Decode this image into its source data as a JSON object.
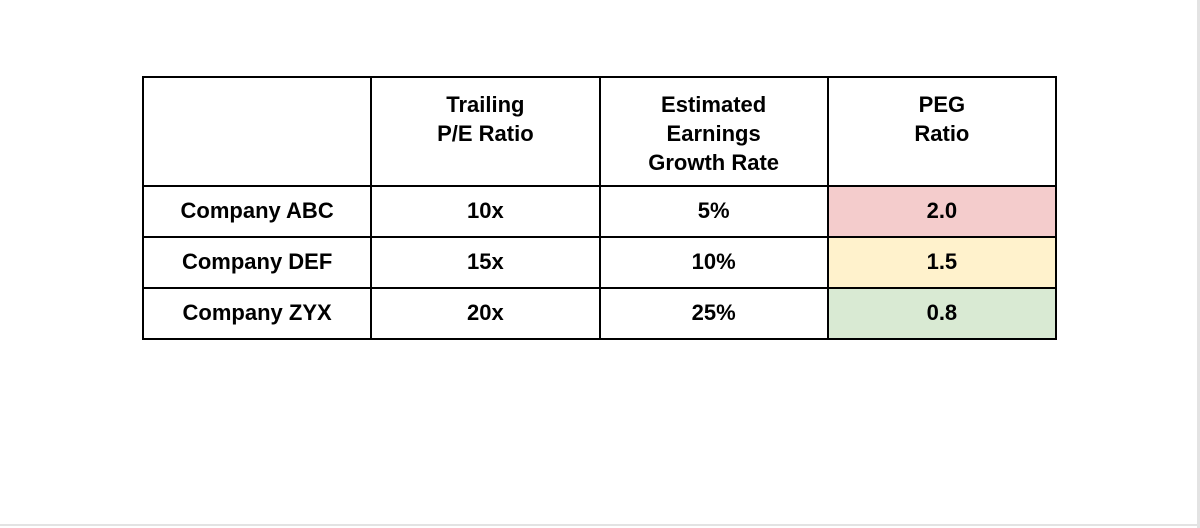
{
  "page": {
    "background": "#ffffff",
    "edge_line_color": "#e3e3e3"
  },
  "table": {
    "border_color": "#000000",
    "text_color": "#000000",
    "headers": [
      "",
      "Trailing\nP/E Ratio",
      "Estimated\nEarnings\nGrowth Rate",
      "PEG\nRatio"
    ],
    "rows": [
      {
        "company": "Company ABC",
        "trailing_pe": "10x",
        "growth_rate": "5%",
        "peg": "2.0",
        "peg_bg": "#f4cccc"
      },
      {
        "company": "Company DEF",
        "trailing_pe": "15x",
        "growth_rate": "10%",
        "peg": "1.5",
        "peg_bg": "#fff2cc"
      },
      {
        "company": "Company ZYX",
        "trailing_pe": "20x",
        "growth_rate": "25%",
        "peg": "0.8",
        "peg_bg": "#d9ead3"
      }
    ]
  }
}
